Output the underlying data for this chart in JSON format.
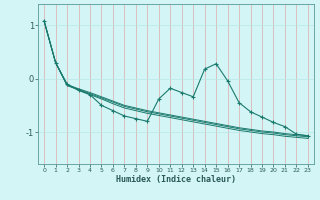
{
  "xlabel": "Humidex (Indice chaleur)",
  "bg_color": "#d4f5f5",
  "grid_color": "#b8e8e8",
  "line_color": "#1a7a6e",
  "xlim": [
    -0.5,
    23.5
  ],
  "ylim": [
    -1.6,
    1.4
  ],
  "yticks": [
    -1,
    0,
    1
  ],
  "xticks": [
    0,
    1,
    2,
    3,
    4,
    5,
    6,
    7,
    8,
    9,
    10,
    11,
    12,
    13,
    14,
    15,
    16,
    17,
    18,
    19,
    20,
    21,
    22,
    23
  ],
  "series_smooth": [
    [
      1.08,
      0.3,
      -0.12,
      -0.2,
      -0.28,
      -0.36,
      -0.44,
      -0.52,
      -0.57,
      -0.62,
      -0.66,
      -0.7,
      -0.74,
      -0.78,
      -0.82,
      -0.86,
      -0.9,
      -0.94,
      -0.97,
      -1.0,
      -1.02,
      -1.05,
      -1.07,
      -1.09
    ],
    [
      1.08,
      0.3,
      -0.11,
      -0.19,
      -0.26,
      -0.34,
      -0.42,
      -0.5,
      -0.55,
      -0.6,
      -0.64,
      -0.68,
      -0.72,
      -0.76,
      -0.8,
      -0.84,
      -0.88,
      -0.92,
      -0.95,
      -0.98,
      -1.0,
      -1.03,
      -1.05,
      -1.07
    ],
    [
      1.08,
      0.3,
      -0.13,
      -0.21,
      -0.3,
      -0.38,
      -0.47,
      -0.55,
      -0.6,
      -0.65,
      -0.69,
      -0.73,
      -0.77,
      -0.81,
      -0.85,
      -0.89,
      -0.93,
      -0.97,
      -1.0,
      -1.03,
      -1.05,
      -1.08,
      -1.1,
      -1.12
    ]
  ],
  "series_zigzag": [
    1.08,
    0.3,
    -0.1,
    -0.22,
    -0.3,
    -0.5,
    -0.6,
    -0.7,
    -0.75,
    -0.8,
    -0.38,
    -0.18,
    -0.26,
    -0.34,
    0.18,
    0.28,
    -0.04,
    -0.45,
    -0.62,
    -0.72,
    -0.82,
    -0.9,
    -1.04,
    -1.07
  ]
}
